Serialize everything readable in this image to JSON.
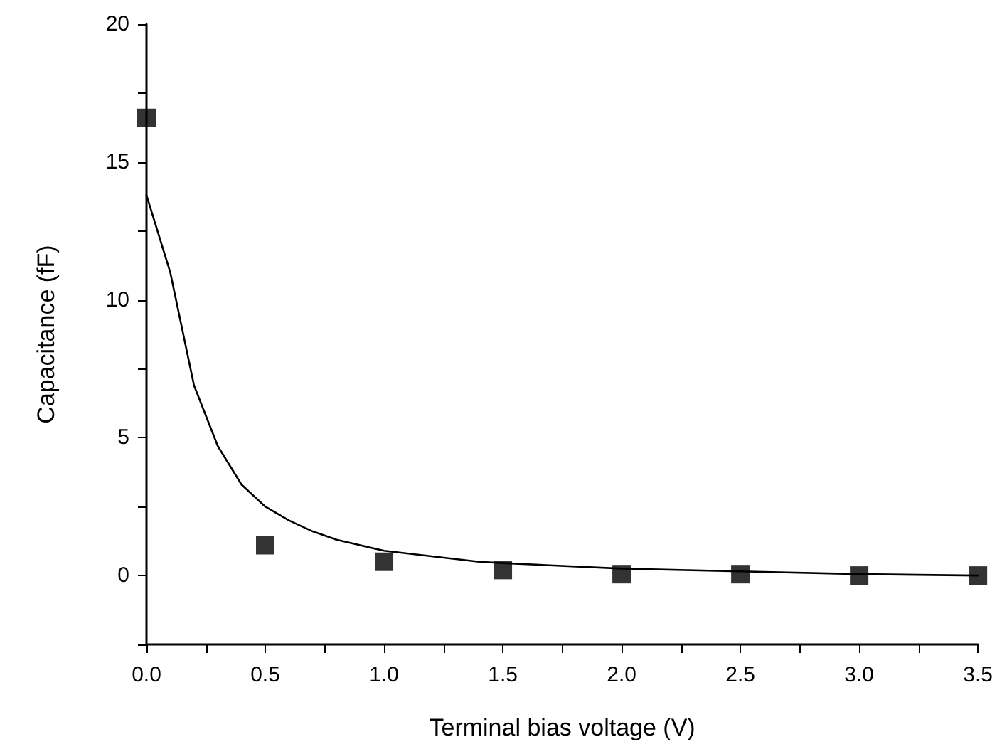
{
  "chart_data": {
    "type": "scatter",
    "xlabel": "Terminal bias voltage (V)",
    "ylabel": "Capacitance (fF)",
    "series": [
      {
        "color": "#000000",
        "marker": "square",
        "x": [
          0,
          0.5,
          1.0,
          1.5,
          2.0,
          2.5,
          3.0,
          3.5
        ],
        "values": [
          16.6,
          1.1,
          0.5,
          0.2,
          0.05,
          0.05,
          0.0,
          0.0
        ]
      },
      {
        "type": "line",
        "color": "#000000",
        "marker": "none",
        "line_style": "solid",
        "x": [
          0,
          0.1,
          0.2,
          0.3,
          0.4,
          0.5,
          0.6,
          0.7,
          0.8,
          0.9,
          1.0,
          1.2,
          1.4,
          1.5,
          2.0,
          2.5,
          3.0,
          3.5
        ],
        "values": [
          13.8,
          11.0,
          6.9,
          4.7,
          3.3,
          2.5,
          2.0,
          1.6,
          1.3,
          1.1,
          0.9,
          0.7,
          0.5,
          0.45,
          0.25,
          0.15,
          0.05,
          0.0
        ]
      }
    ],
    "xlim": [
      0,
      3.5
    ],
    "xticks": [
      {
        "value": 0,
        "label": "0.0"
      },
      {
        "value": 0.25,
        "label": null
      },
      {
        "value": 0.5,
        "label": "0.5"
      },
      {
        "value": 0.75,
        "label": null
      },
      {
        "value": 1,
        "label": "1.0"
      },
      {
        "value": 1.25,
        "label": null
      },
      {
        "value": 1.5,
        "label": "1.5"
      },
      {
        "value": 1.75,
        "label": null
      },
      {
        "value": 2,
        "label": "2.0"
      },
      {
        "value": 2.25,
        "label": null
      },
      {
        "value": 2.5,
        "label": "2.5"
      },
      {
        "value": 2.75,
        "label": null
      },
      {
        "value": 3,
        "label": "3.0"
      },
      {
        "value": 3.25,
        "label": null
      },
      {
        "value": 3.5,
        "label": "3.5"
      }
    ],
    "ylim": [
      -2.5,
      20
    ],
    "yticks": [
      {
        "value": -2.5,
        "label": null
      },
      0,
      {
        "value": 2.5,
        "label": null
      },
      5,
      {
        "value": 7.5,
        "label": null
      },
      10,
      {
        "value": 12.5,
        "label": null
      },
      15,
      {
        "value": 17.5,
        "label": null
      },
      20
    ],
    "grid": false
  }
}
